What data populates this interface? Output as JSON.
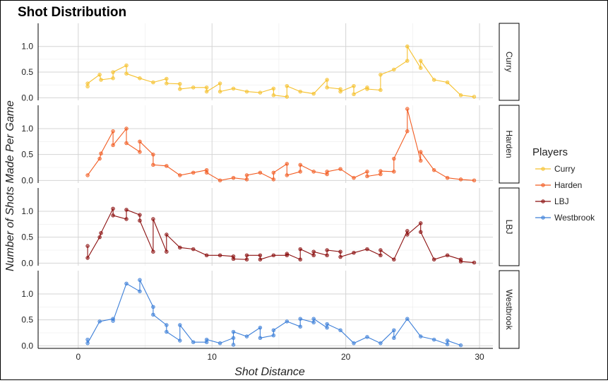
{
  "chart_data": {
    "type": "line",
    "title": "Shot Distribution",
    "xlabel": "Shot Distance",
    "ylabel": "Number of Shots Made Per Game",
    "xlim": [
      -3,
      31
    ],
    "ylim": [
      -0.05,
      1.45
    ],
    "x_ticks": [
      0,
      10,
      20,
      30
    ],
    "y_ticks": [
      0.0,
      0.5,
      1.0
    ],
    "grid": true,
    "legend": {
      "title": "Players",
      "placement": "right"
    },
    "facets": [
      "Curry",
      "Harden",
      "LBJ",
      "Westbrook"
    ],
    "series": [
      {
        "name": "Curry",
        "color": "#F5C12E",
        "points": [
          [
            0.7,
            0.22
          ],
          [
            0.7,
            0.28
          ],
          [
            1.6,
            0.45
          ],
          [
            1.7,
            0.35
          ],
          [
            2.6,
            0.38
          ],
          [
            2.6,
            0.5
          ],
          [
            3.6,
            0.63
          ],
          [
            3.6,
            0.47
          ],
          [
            4.6,
            0.38
          ],
          [
            5.6,
            0.3
          ],
          [
            6.6,
            0.37
          ],
          [
            6.6,
            0.28
          ],
          [
            7.6,
            0.27
          ],
          [
            7.6,
            0.17
          ],
          [
            8.6,
            0.2
          ],
          [
            9.6,
            0.2
          ],
          [
            9.6,
            0.12
          ],
          [
            10.6,
            0.28
          ],
          [
            10.6,
            0.12
          ],
          [
            11.6,
            0.18
          ],
          [
            12.6,
            0.12
          ],
          [
            13.6,
            0.1
          ],
          [
            14.6,
            0.18
          ],
          [
            14.6,
            0.05
          ],
          [
            15.6,
            0.02
          ],
          [
            15.6,
            0.23
          ],
          [
            16.6,
            0.12
          ],
          [
            17.6,
            0.08
          ],
          [
            18.6,
            0.35
          ],
          [
            18.6,
            0.2
          ],
          [
            19.6,
            0.17
          ],
          [
            19.6,
            0.12
          ],
          [
            20.6,
            0.23
          ],
          [
            20.6,
            0.07
          ],
          [
            21.6,
            0.2
          ],
          [
            21.6,
            0.17
          ],
          [
            22.6,
            0.15
          ],
          [
            22.6,
            0.45
          ],
          [
            23.6,
            0.55
          ],
          [
            24.6,
            0.72
          ],
          [
            24.6,
            1.0
          ],
          [
            25.6,
            0.58
          ],
          [
            25.6,
            0.72
          ],
          [
            26.6,
            0.35
          ],
          [
            27.6,
            0.3
          ],
          [
            28.6,
            0.05
          ],
          [
            29.6,
            0.02
          ]
        ]
      },
      {
        "name": "Harden",
        "color": "#F25C22",
        "points": [
          [
            0.7,
            0.1
          ],
          [
            1.6,
            0.42
          ],
          [
            1.7,
            0.52
          ],
          [
            2.6,
            0.95
          ],
          [
            2.6,
            0.68
          ],
          [
            3.6,
            1.0
          ],
          [
            3.6,
            0.72
          ],
          [
            4.6,
            0.55
          ],
          [
            4.6,
            0.75
          ],
          [
            5.6,
            0.5
          ],
          [
            5.6,
            0.3
          ],
          [
            6.6,
            0.28
          ],
          [
            7.6,
            0.1
          ],
          [
            8.6,
            0.15
          ],
          [
            9.6,
            0.2
          ],
          [
            9.6,
            0.15
          ],
          [
            10.6,
            0.0
          ],
          [
            11.6,
            0.05
          ],
          [
            12.6,
            0.02
          ],
          [
            12.6,
            0.1
          ],
          [
            13.6,
            0.15
          ],
          [
            14.6,
            0.02
          ],
          [
            14.6,
            0.15
          ],
          [
            15.6,
            0.32
          ],
          [
            15.6,
            0.1
          ],
          [
            16.6,
            0.17
          ],
          [
            16.6,
            0.3
          ],
          [
            17.6,
            0.17
          ],
          [
            18.6,
            0.12
          ],
          [
            18.6,
            0.17
          ],
          [
            19.6,
            0.22
          ],
          [
            20.6,
            0.05
          ],
          [
            21.6,
            0.17
          ],
          [
            21.6,
            0.08
          ],
          [
            22.6,
            0.12
          ],
          [
            22.6,
            0.18
          ],
          [
            23.6,
            0.17
          ],
          [
            23.6,
            0.42
          ],
          [
            24.6,
            0.95
          ],
          [
            24.6,
            1.38
          ],
          [
            25.6,
            0.38
          ],
          [
            25.6,
            0.55
          ],
          [
            26.6,
            0.2
          ],
          [
            27.6,
            0.05
          ],
          [
            28.6,
            0.02
          ],
          [
            29.6,
            0.0
          ]
        ]
      },
      {
        "name": "LBJ",
        "color": "#8B0F0F",
        "points": [
          [
            0.7,
            0.33
          ],
          [
            0.7,
            0.1
          ],
          [
            1.6,
            0.5
          ],
          [
            1.7,
            0.58
          ],
          [
            2.6,
            1.05
          ],
          [
            2.6,
            0.92
          ],
          [
            3.6,
            0.85
          ],
          [
            3.6,
            1.03
          ],
          [
            4.6,
            0.93
          ],
          [
            4.6,
            0.82
          ],
          [
            5.6,
            0.22
          ],
          [
            5.6,
            0.85
          ],
          [
            6.6,
            0.22
          ],
          [
            6.6,
            0.55
          ],
          [
            7.6,
            0.3
          ],
          [
            8.6,
            0.27
          ],
          [
            9.6,
            0.15
          ],
          [
            10.6,
            0.15
          ],
          [
            11.6,
            0.13
          ],
          [
            11.6,
            0.08
          ],
          [
            12.6,
            0.07
          ],
          [
            12.6,
            0.15
          ],
          [
            13.6,
            0.15
          ],
          [
            13.6,
            0.07
          ],
          [
            14.6,
            0.15
          ],
          [
            15.6,
            0.15
          ],
          [
            15.6,
            0.18
          ],
          [
            16.6,
            0.07
          ],
          [
            16.6,
            0.27
          ],
          [
            17.6,
            0.15
          ],
          [
            17.6,
            0.22
          ],
          [
            18.6,
            0.15
          ],
          [
            18.6,
            0.25
          ],
          [
            19.6,
            0.22
          ],
          [
            19.6,
            0.12
          ],
          [
            20.6,
            0.2
          ],
          [
            21.6,
            0.27
          ],
          [
            22.6,
            0.15
          ],
          [
            22.6,
            0.25
          ],
          [
            23.6,
            0.07
          ],
          [
            24.6,
            0.62
          ],
          [
            24.6,
            0.55
          ],
          [
            25.6,
            0.77
          ],
          [
            25.6,
            0.6
          ],
          [
            26.6,
            0.07
          ],
          [
            27.6,
            0.15
          ],
          [
            28.6,
            0.07
          ],
          [
            28.6,
            0.03
          ],
          [
            29.6,
            0.01
          ]
        ]
      },
      {
        "name": "Westbrook",
        "color": "#3D7FD8",
        "points": [
          [
            0.7,
            0.12
          ],
          [
            0.7,
            0.05
          ],
          [
            1.6,
            0.47
          ],
          [
            2.6,
            0.52
          ],
          [
            2.6,
            0.48
          ],
          [
            3.6,
            1.2
          ],
          [
            4.6,
            1.05
          ],
          [
            4.6,
            1.27
          ],
          [
            5.6,
            0.75
          ],
          [
            5.6,
            0.6
          ],
          [
            6.6,
            0.4
          ],
          [
            6.6,
            0.27
          ],
          [
            7.6,
            0.1
          ],
          [
            7.6,
            0.4
          ],
          [
            8.6,
            0.07
          ],
          [
            9.6,
            0.07
          ],
          [
            9.6,
            0.12
          ],
          [
            10.6,
            0.05
          ],
          [
            11.6,
            0.15
          ],
          [
            11.6,
            0.02
          ],
          [
            11.6,
            0.27
          ],
          [
            12.6,
            0.18
          ],
          [
            13.6,
            0.35
          ],
          [
            13.6,
            0.15
          ],
          [
            14.6,
            0.2
          ],
          [
            14.6,
            0.3
          ],
          [
            15.6,
            0.47
          ],
          [
            16.6,
            0.37
          ],
          [
            16.6,
            0.52
          ],
          [
            17.6,
            0.45
          ],
          [
            17.6,
            0.52
          ],
          [
            18.6,
            0.35
          ],
          [
            18.6,
            0.42
          ],
          [
            19.6,
            0.3
          ],
          [
            20.6,
            0.05
          ],
          [
            21.6,
            0.17
          ],
          [
            22.6,
            0.05
          ],
          [
            23.6,
            0.3
          ],
          [
            23.6,
            0.15
          ],
          [
            24.6,
            0.52
          ],
          [
            25.6,
            0.18
          ],
          [
            26.6,
            0.12
          ],
          [
            27.6,
            0.03
          ],
          [
            27.6,
            0.1
          ],
          [
            28.6,
            0.01
          ]
        ]
      }
    ]
  }
}
